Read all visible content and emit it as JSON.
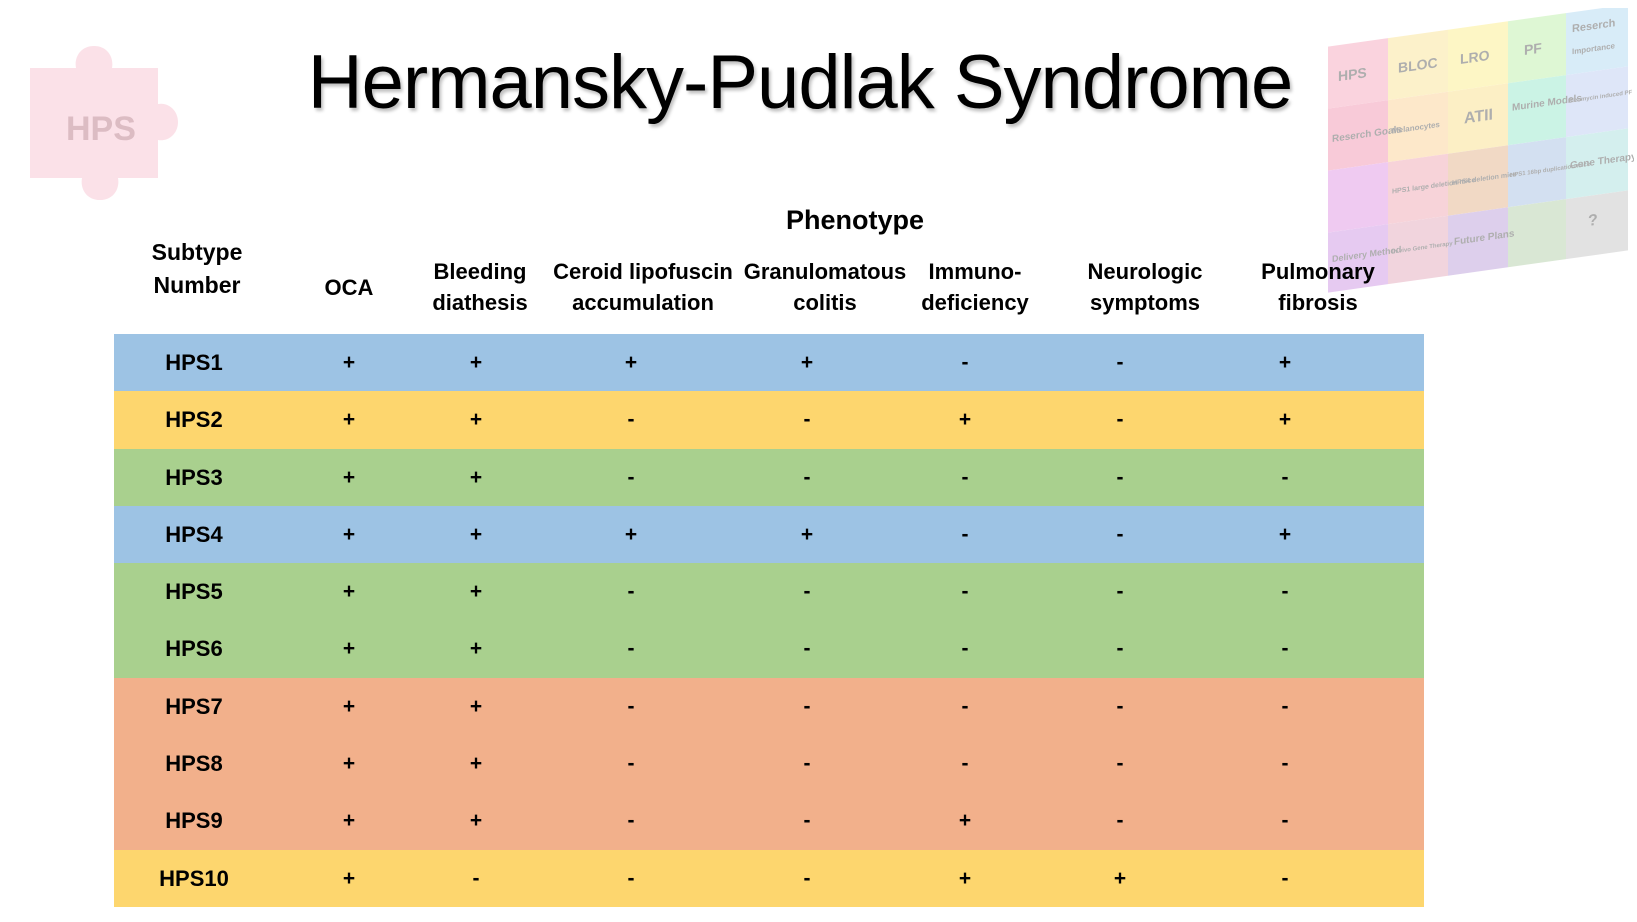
{
  "title": "Hermansky-Pudlak Syndrome",
  "logos": {
    "left_text": "HPS",
    "right_pieces": [
      "HPS",
      "BLOC",
      "LRO",
      "PF",
      "Reserch",
      "Importance",
      "Reserch Goals",
      "Melanocytes",
      "ATII",
      "Murine Models",
      "Bleomycin induced PF mice",
      "HPS1 large deletion mice",
      "HPS4 deletion mice",
      "HPS1 16bp duplication mice",
      "Gene Therapy",
      "Delivery Method",
      "In vivo Gene Therapy",
      "Future Plans",
      "?"
    ]
  },
  "headers": {
    "subtype": "Subtype Number",
    "phenotype": "Phenotype",
    "columns": [
      "OCA",
      "Bleeding diathesis",
      "Ceroid lipofuscin accumulation",
      "Granulomatous colitis",
      "Immuno-deficiency",
      "Neurologic symptoms",
      "Pulmonary fibrosis"
    ]
  },
  "colors": {
    "blue": "#9dc3e4",
    "yellow": "#fdd66e",
    "green": "#a9d08e",
    "orange": "#f2b08b"
  },
  "rows": [
    {
      "subtype": "HPS1",
      "color": "#9dc3e4",
      "values": [
        "+",
        "+",
        "+",
        "+",
        "-",
        "-",
        "+"
      ]
    },
    {
      "subtype": "HPS2",
      "color": "#fdd66e",
      "values": [
        "+",
        "+",
        "-",
        "-",
        "+",
        "-",
        "+"
      ]
    },
    {
      "subtype": "HPS3",
      "color": "#a9d08e",
      "values": [
        "+",
        "+",
        "-",
        "-",
        "-",
        "-",
        "-"
      ]
    },
    {
      "subtype": "HPS4",
      "color": "#9dc3e4",
      "values": [
        "+",
        "+",
        "+",
        "+",
        "-",
        "-",
        "+"
      ]
    },
    {
      "subtype": "HPS5",
      "color": "#a9d08e",
      "values": [
        "+",
        "+",
        "-",
        "-",
        "-",
        "-",
        "-"
      ]
    },
    {
      "subtype": "HPS6",
      "color": "#a9d08e",
      "values": [
        "+",
        "+",
        "-",
        "-",
        "-",
        "-",
        "-"
      ]
    },
    {
      "subtype": "HPS7",
      "color": "#f2b08b",
      "values": [
        "+",
        "+",
        "-",
        "-",
        "-",
        "-",
        "-"
      ]
    },
    {
      "subtype": "HPS8",
      "color": "#f2b08b",
      "values": [
        "+",
        "+",
        "-",
        "-",
        "-",
        "-",
        "-"
      ]
    },
    {
      "subtype": "HPS9",
      "color": "#f2b08b",
      "values": [
        "+",
        "+",
        "-",
        "-",
        "+",
        "-",
        "-"
      ]
    },
    {
      "subtype": "HPS10",
      "color": "#fdd66e",
      "values": [
        "+",
        "-",
        "-",
        "-",
        "+",
        "+",
        "-"
      ]
    }
  ]
}
